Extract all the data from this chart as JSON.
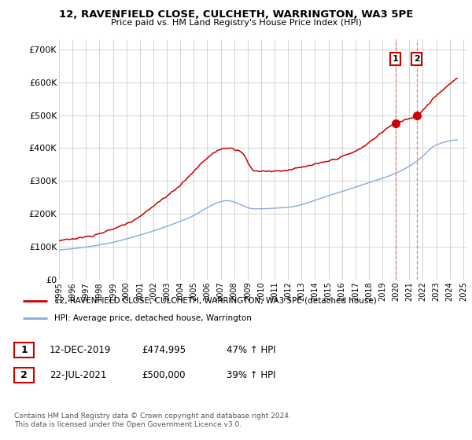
{
  "title1": "12, RAVENFIELD CLOSE, CULCHETH, WARRINGTON, WA3 5PE",
  "title2": "Price paid vs. HM Land Registry's House Price Index (HPI)",
  "ylabel_ticks": [
    "£0",
    "£100K",
    "£200K",
    "£300K",
    "£400K",
    "£500K",
    "£600K",
    "£700K"
  ],
  "y_values": [
    0,
    100000,
    200000,
    300000,
    400000,
    500000,
    600000,
    700000
  ],
  "ylim": [
    0,
    730000
  ],
  "xlim_start": 1995.0,
  "xlim_end": 2025.3,
  "line1_color": "#cc0000",
  "line2_color": "#88aadd",
  "sale1_date_x": 2019.96,
  "sale1_price": 474995,
  "sale2_date_x": 2021.55,
  "sale2_price": 500000,
  "legend_line1": "12, RAVENFIELD CLOSE, CULCHETH, WARRINGTON, WA3 5PE (detached house)",
  "legend_line2": "HPI: Average price, detached house, Warrington",
  "table_row1": [
    "1",
    "12-DEC-2019",
    "£474,995",
    "47% ↑ HPI"
  ],
  "table_row2": [
    "2",
    "22-JUL-2021",
    "£500,000",
    "39% ↑ HPI"
  ],
  "footnote": "Contains HM Land Registry data © Crown copyright and database right 2024.\nThis data is licensed under the Open Government Licence v3.0.",
  "background_color": "#ffffff",
  "grid_color": "#cccccc",
  "xtick_years": [
    1995,
    1996,
    1997,
    1998,
    1999,
    2000,
    2001,
    2002,
    2003,
    2004,
    2005,
    2006,
    2007,
    2008,
    2009,
    2010,
    2011,
    2012,
    2013,
    2014,
    2015,
    2016,
    2017,
    2018,
    2019,
    2020,
    2021,
    2022,
    2023,
    2024,
    2025
  ]
}
